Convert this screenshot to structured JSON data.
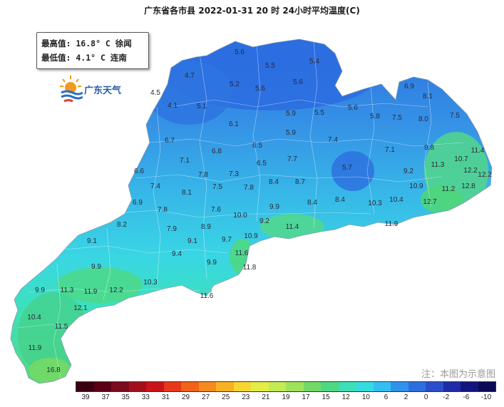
{
  "title": "广东省各市县 2022-01-31 20 时 24小时平均温度(C)",
  "info": {
    "max_label": "最高值:",
    "max_value": "16.8° C",
    "max_place": "徐闻",
    "min_label": "最低值:",
    "min_value": "4.1° C",
    "min_place": "连南"
  },
  "logo_text": "广东天气",
  "note": "注：本图为示意图",
  "legend": {
    "colors": [
      "#3a0011",
      "#5b0016",
      "#7a0a1d",
      "#a3101c",
      "#c9141a",
      "#e8381a",
      "#f2621a",
      "#f58a1f",
      "#f6b223",
      "#f7d634",
      "#e4ec46",
      "#c2eb54",
      "#9ee35c",
      "#72d967",
      "#4fd883",
      "#3cdfb6",
      "#35dcdf",
      "#34bff0",
      "#2f93ea",
      "#2e6fdf",
      "#2b4ecc",
      "#1f2ca6",
      "#121480",
      "#0a0a55"
    ],
    "ticks": [
      "39",
      "37",
      "35",
      "33",
      "31",
      "29",
      "27",
      "25",
      "23",
      "21",
      "19",
      "17",
      "15",
      "12",
      "10",
      "6",
      "2",
      "0",
      "-2",
      "-6",
      "-10"
    ]
  },
  "stations": [
    {
      "t": "5.6",
      "c": "#2d78e0"
    },
    {
      "t": "5.5",
      "c": "#2d78e0"
    },
    {
      "t": "5.4",
      "c": "#2d78e0"
    },
    {
      "t": "4.7",
      "c": "#2d78e0"
    },
    {
      "t": "4.5",
      "c": "#2d78e0"
    },
    {
      "t": "5.2",
      "c": "#2d78e0"
    },
    {
      "t": "5.6",
      "c": "#2d78e0"
    },
    {
      "t": "5.6",
      "c": "#2d78e0"
    },
    {
      "t": "6.9",
      "c": "#39b0e6"
    },
    {
      "t": "8.1",
      "c": "#39c5e8"
    },
    {
      "t": "4.1",
      "c": "#2d78e0"
    },
    {
      "t": "5.1",
      "c": "#2d78e0"
    },
    {
      "t": "5.9",
      "c": "#2d78e0"
    },
    {
      "t": "5.5",
      "c": "#2d78e0"
    },
    {
      "t": "5.6",
      "c": "#2d78e0"
    },
    {
      "t": "5.8",
      "c": "#2d78e0"
    },
    {
      "t": "7.5",
      "c": "#39b0e6"
    },
    {
      "t": "8.0",
      "c": "#39c5e8"
    },
    {
      "t": "7.5",
      "c": "#39b0e6"
    },
    {
      "t": "6.1",
      "c": "#38a9e6"
    },
    {
      "t": "5.9",
      "c": "#2d78e0"
    },
    {
      "t": "6.7",
      "c": "#38a9e6"
    },
    {
      "t": "7.4",
      "c": "#39b0e6"
    },
    {
      "t": "9.8",
      "c": "#3ad8e6"
    },
    {
      "t": "11.4",
      "c": "#4fd883"
    },
    {
      "t": "6.8",
      "c": "#38a9e6"
    },
    {
      "t": "6.5",
      "c": "#38a9e6"
    },
    {
      "t": "7.1",
      "c": "#39b0e6"
    },
    {
      "t": "7.7",
      "c": "#39b0e6"
    },
    {
      "t": "7.1",
      "c": "#39b0e6"
    },
    {
      "t": "10.7",
      "c": "#3ce0c4"
    },
    {
      "t": "6.6",
      "c": "#38a9e6"
    },
    {
      "t": "6.5",
      "c": "#38a9e6"
    },
    {
      "t": "5.7",
      "c": "#2d78e0"
    },
    {
      "t": "11.3",
      "c": "#4fd883"
    },
    {
      "t": "12.2",
      "c": "#4fd883"
    },
    {
      "t": "7.8",
      "c": "#39b0e6"
    },
    {
      "t": "7.3",
      "c": "#39b0e6"
    },
    {
      "t": "9.2",
      "c": "#3ad8e6"
    },
    {
      "t": "12.2",
      "c": "#4fd883"
    },
    {
      "t": "7.4",
      "c": "#39b0e6"
    },
    {
      "t": "8.1",
      "c": "#39c5e8"
    },
    {
      "t": "7.5",
      "c": "#39b0e6"
    },
    {
      "t": "7.8",
      "c": "#39b0e6"
    },
    {
      "t": "8.4",
      "c": "#39c5e8"
    },
    {
      "t": "8.7",
      "c": "#39c5e8"
    },
    {
      "t": "10.9",
      "c": "#3ce0c4"
    },
    {
      "t": "11.2",
      "c": "#4fd883"
    },
    {
      "t": "12.8",
      "c": "#4fd883"
    },
    {
      "t": "6.9",
      "c": "#38a9e6"
    },
    {
      "t": "7.8",
      "c": "#39b0e6"
    },
    {
      "t": "7.6",
      "c": "#39b0e6"
    },
    {
      "t": "8.4",
      "c": "#39c5e8"
    },
    {
      "t": "8.4",
      "c": "#39c5e8"
    },
    {
      "t": "10.3",
      "c": "#3ce0c4"
    },
    {
      "t": "10.4",
      "c": "#3ce0c4"
    },
    {
      "t": "12.7",
      "c": "#4fd883"
    },
    {
      "t": "10.0",
      "c": "#3ce0c4"
    },
    {
      "t": "9.9",
      "c": "#3ad8e6"
    },
    {
      "t": "8.2",
      "c": "#39c5e8"
    },
    {
      "t": "7.9",
      "c": "#39b0e6"
    },
    {
      "t": "8.9",
      "c": "#39c5e8"
    },
    {
      "t": "9.2",
      "c": "#3ad8e6"
    },
    {
      "t": "11.4",
      "c": "#4fd883"
    },
    {
      "t": "11.9",
      "c": "#4fd883"
    },
    {
      "t": "9.1",
      "c": "#3ad8e6"
    },
    {
      "t": "10.9",
      "c": "#3ce0c4"
    },
    {
      "t": "9.1",
      "c": "#3ad8e6"
    },
    {
      "t": "9.7",
      "c": "#3ad8e6"
    },
    {
      "t": "9.9",
      "c": "#3ad8e6"
    },
    {
      "t": "9.4",
      "c": "#3ad8e6"
    },
    {
      "t": "11.6",
      "c": "#4fd883"
    },
    {
      "t": "9.9",
      "c": "#3ad8e6"
    },
    {
      "t": "11.8",
      "c": "#4fd883"
    },
    {
      "t": "10.3",
      "c": "#3ce0c4"
    },
    {
      "t": "9.9",
      "c": "#3ad8e6"
    },
    {
      "t": "11.3",
      "c": "#4fd883"
    },
    {
      "t": "11.9",
      "c": "#4fd883"
    },
    {
      "t": "12.2",
      "c": "#4fd883"
    },
    {
      "t": "11.6",
      "c": "#4fd883"
    },
    {
      "t": "12.1",
      "c": "#4fd883"
    },
    {
      "t": "10.4",
      "c": "#3ce0c4"
    },
    {
      "t": "11.5",
      "c": "#4fd883"
    },
    {
      "t": "11.9",
      "c": "#4fd883"
    },
    {
      "t": "16.8",
      "c": "#72d967"
    }
  ]
}
